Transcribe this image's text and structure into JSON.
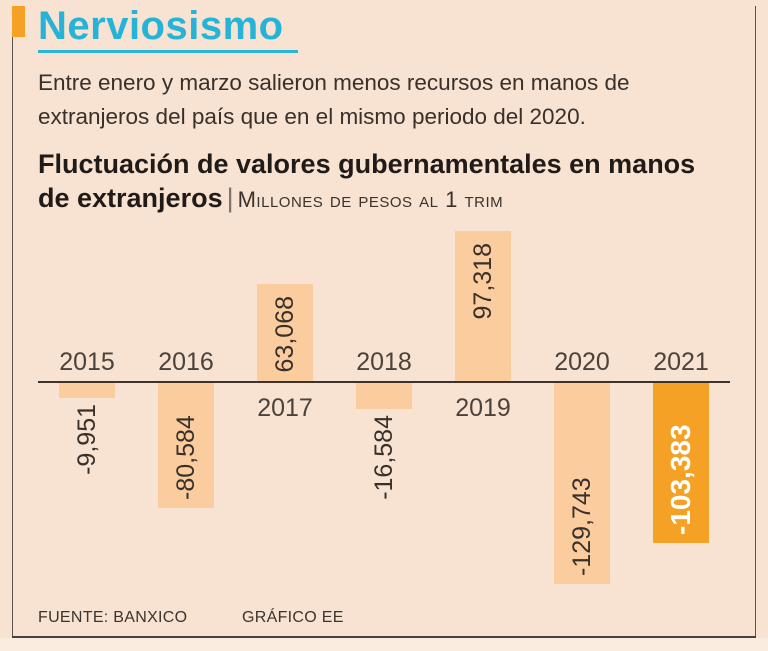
{
  "header": {
    "title": "Nerviosismo",
    "title_color": "#25b4d8",
    "accent_color": "#f4a125",
    "subtitle_lines": [
      "Entre enero y marzo salieron menos recursos en manos de",
      "extranjeros del país que en el mismo periodo del 2020."
    ]
  },
  "chart_heading": {
    "line1": "Fluctuación de valores gubernamentales en manos",
    "line2_bold": "de extranjeros",
    "separator": "|",
    "units": "Millones de pesos al 1 trim"
  },
  "chart_data": {
    "type": "bar",
    "title": "Fluctuación de valores gubernamentales en manos de extranjeros",
    "units": "Millones de pesos al 1 trim",
    "categories": [
      "2015",
      "2016",
      "2017",
      "2018",
      "2019",
      "2020",
      "2021"
    ],
    "values": [
      -9951,
      -80584,
      63068,
      -16584,
      97318,
      -129743,
      -103383
    ],
    "value_labels": [
      "-9,951",
      "-80,584",
      "63,068",
      "-16,584",
      "97,318",
      "-129,743",
      "-103,383"
    ],
    "xlabel": "",
    "ylabel": "",
    "ylim": [
      -140000,
      110000
    ],
    "grid": false,
    "legend": false,
    "highlight_index": 6,
    "bar_color": "#fbcd9e",
    "highlight_color": "#f4a125",
    "axis_color": "#3b332c"
  },
  "footer": {
    "source": "FUENTE: BANXICO",
    "credit": "GRÁFICO EE"
  }
}
